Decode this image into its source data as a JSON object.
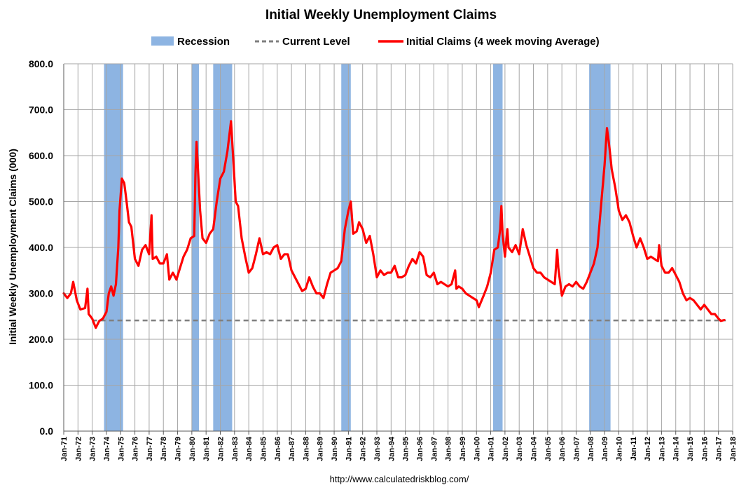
{
  "chart_data": {
    "type": "line",
    "title": "Initial Weekly Unemployment Claims",
    "ylabel": "Initial Weekly Unemployment Claims (000)",
    "xlabel": "",
    "ylim": [
      0,
      800
    ],
    "yticks": [
      "0.0",
      "100.0",
      "200.0",
      "300.0",
      "400.0",
      "500.0",
      "600.0",
      "700.0",
      "800.0"
    ],
    "xticks": [
      "Jan-71",
      "Jan-72",
      "Jan-73",
      "Jan-74",
      "Jan-75",
      "Jan-76",
      "Jan-77",
      "Jan-78",
      "Jan-79",
      "Jan-80",
      "Jan-81",
      "Jan-82",
      "Jan-83",
      "Jan-84",
      "Jan-85",
      "Jan-86",
      "Jan-87",
      "Jan-88",
      "Jan-89",
      "Jan-90",
      "Jan-91",
      "Jan-92",
      "Jan-93",
      "Jan-94",
      "Jan-95",
      "Jan-96",
      "Jan-97",
      "Jan-98",
      "Jan-99",
      "Jan-00",
      "Jan-01",
      "Jan-02",
      "Jan-03",
      "Jan-04",
      "Jan-05",
      "Jan-06",
      "Jan-07",
      "Jan-08",
      "Jan-09",
      "Jan-10",
      "Jan-11",
      "Jan-12",
      "Jan-13",
      "Jan-14",
      "Jan-15",
      "Jan-16",
      "Jan-17",
      "Jan-18"
    ],
    "xlim": [
      "Jan-71",
      "Jan-18"
    ],
    "grid": true,
    "legend_placement": "top-center",
    "legend": [
      {
        "label": "Recession",
        "style": "bar",
        "color": "#8db4e2"
      },
      {
        "label": "Current Level",
        "style": "dashed",
        "color": "#7f7f7f"
      },
      {
        "label": "Initial Claims (4 week moving Average)",
        "style": "line",
        "color": "#ff0000"
      }
    ],
    "recessions": [
      {
        "start": "Nov-73",
        "end": "Mar-75"
      },
      {
        "start": "Jan-80",
        "end": "Jul-80"
      },
      {
        "start": "Jul-81",
        "end": "Nov-82"
      },
      {
        "start": "Jul-90",
        "end": "Mar-91"
      },
      {
        "start": "Mar-01",
        "end": "Nov-01"
      },
      {
        "start": "Dec-07",
        "end": "Jun-09"
      }
    ],
    "current_level": 241,
    "series": [
      {
        "name": "Initial Claims (4 week moving Average)",
        "color": "#ff0000",
        "points": [
          [
            "Jan-71",
            300
          ],
          [
            "Apr-71",
            290
          ],
          [
            "Jul-71",
            300
          ],
          [
            "Sep-71",
            325
          ],
          [
            "Dec-71",
            285
          ],
          [
            "Mar-72",
            265
          ],
          [
            "Jul-72",
            268
          ],
          [
            "Sep-72",
            310
          ],
          [
            "Oct-72",
            255
          ],
          [
            "Jan-73",
            245
          ],
          [
            "Apr-73",
            225
          ],
          [
            "Jul-73",
            240
          ],
          [
            "Oct-73",
            245
          ],
          [
            "Jan-74",
            260
          ],
          [
            "Mar-74",
            300
          ],
          [
            "May-74",
            315
          ],
          [
            "Jul-74",
            295
          ],
          [
            "Sep-74",
            320
          ],
          [
            "Nov-74",
            400
          ],
          [
            "Dec-74",
            480
          ],
          [
            "Feb-75",
            550
          ],
          [
            "Apr-75",
            540
          ],
          [
            "Jun-75",
            500
          ],
          [
            "Aug-75",
            455
          ],
          [
            "Oct-75",
            445
          ],
          [
            "Jan-76",
            375
          ],
          [
            "Apr-76",
            360
          ],
          [
            "Jul-76",
            395
          ],
          [
            "Oct-76",
            405
          ],
          [
            "Jan-77",
            385
          ],
          [
            "Mar-77",
            470
          ],
          [
            "Apr-77",
            375
          ],
          [
            "Jul-77",
            380
          ],
          [
            "Oct-77",
            365
          ],
          [
            "Jan-78",
            365
          ],
          [
            "Apr-78",
            385
          ],
          [
            "Jun-78",
            330
          ],
          [
            "Sep-78",
            345
          ],
          [
            "Dec-78",
            330
          ],
          [
            "Mar-79",
            355
          ],
          [
            "Jun-79",
            380
          ],
          [
            "Sep-79",
            395
          ],
          [
            "Dec-79",
            420
          ],
          [
            "Mar-80",
            425
          ],
          [
            "Apr-80",
            560
          ],
          [
            "May-80",
            630
          ],
          [
            "Jun-80",
            580
          ],
          [
            "Aug-80",
            480
          ],
          [
            "Oct-80",
            420
          ],
          [
            "Jan-81",
            410
          ],
          [
            "Apr-81",
            430
          ],
          [
            "Jul-81",
            440
          ],
          [
            "Oct-81",
            500
          ],
          [
            "Jan-82",
            550
          ],
          [
            "Apr-82",
            565
          ],
          [
            "Jul-82",
            610
          ],
          [
            "Oct-82",
            675
          ],
          [
            "Dec-82",
            590
          ],
          [
            "Feb-83",
            500
          ],
          [
            "Apr-83",
            490
          ],
          [
            "Jul-83",
            420
          ],
          [
            "Oct-83",
            380
          ],
          [
            "Jan-84",
            345
          ],
          [
            "Apr-84",
            355
          ],
          [
            "Jul-84",
            385
          ],
          [
            "Oct-84",
            420
          ],
          [
            "Jan-85",
            385
          ],
          [
            "Apr-85",
            390
          ],
          [
            "Jul-85",
            385
          ],
          [
            "Oct-85",
            400
          ],
          [
            "Jan-86",
            405
          ],
          [
            "Apr-86",
            375
          ],
          [
            "Jul-86",
            385
          ],
          [
            "Oct-86",
            385
          ],
          [
            "Jan-87",
            350
          ],
          [
            "Apr-87",
            335
          ],
          [
            "Jul-87",
            320
          ],
          [
            "Oct-87",
            305
          ],
          [
            "Jan-88",
            310
          ],
          [
            "Apr-88",
            335
          ],
          [
            "Jul-88",
            315
          ],
          [
            "Oct-88",
            300
          ],
          [
            "Jan-89",
            300
          ],
          [
            "Apr-89",
            290
          ],
          [
            "Jul-89",
            320
          ],
          [
            "Oct-89",
            345
          ],
          [
            "Jan-90",
            350
          ],
          [
            "Apr-90",
            355
          ],
          [
            "Jul-90",
            370
          ],
          [
            "Oct-90",
            440
          ],
          [
            "Jan-91",
            480
          ],
          [
            "Mar-91",
            500
          ],
          [
            "May-91",
            430
          ],
          [
            "Aug-91",
            435
          ],
          [
            "Oct-91",
            455
          ],
          [
            "Jan-92",
            440
          ],
          [
            "Apr-92",
            410
          ],
          [
            "Jul-92",
            425
          ],
          [
            "Oct-92",
            385
          ],
          [
            "Jan-93",
            335
          ],
          [
            "Apr-93",
            350
          ],
          [
            "Jul-93",
            340
          ],
          [
            "Oct-93",
            345
          ],
          [
            "Jan-94",
            345
          ],
          [
            "Apr-94",
            360
          ],
          [
            "Jul-94",
            335
          ],
          [
            "Oct-94",
            335
          ],
          [
            "Jan-95",
            340
          ],
          [
            "Apr-95",
            360
          ],
          [
            "Jul-95",
            375
          ],
          [
            "Oct-95",
            365
          ],
          [
            "Jan-96",
            390
          ],
          [
            "Apr-96",
            380
          ],
          [
            "Jul-96",
            340
          ],
          [
            "Oct-96",
            335
          ],
          [
            "Jan-97",
            345
          ],
          [
            "Apr-97",
            320
          ],
          [
            "Jul-97",
            325
          ],
          [
            "Oct-97",
            320
          ],
          [
            "Jan-98",
            315
          ],
          [
            "Apr-98",
            320
          ],
          [
            "Jul-98",
            350
          ],
          [
            "Aug-98",
            310
          ],
          [
            "Oct-98",
            315
          ],
          [
            "Jan-99",
            310
          ],
          [
            "Apr-99",
            300
          ],
          [
            "Jul-99",
            295
          ],
          [
            "Oct-99",
            290
          ],
          [
            "Jan-00",
            285
          ],
          [
            "Mar-00",
            270
          ],
          [
            "Jul-00",
            295
          ],
          [
            "Oct-00",
            315
          ],
          [
            "Jan-01",
            345
          ],
          [
            "Apr-01",
            395
          ],
          [
            "Jul-01",
            400
          ],
          [
            "Sep-01",
            440
          ],
          [
            "Oct-01",
            490
          ],
          [
            "Nov-01",
            430
          ],
          [
            "Jan-02",
            380
          ],
          [
            "Mar-02",
            440
          ],
          [
            "Apr-02",
            400
          ],
          [
            "Jul-02",
            390
          ],
          [
            "Oct-02",
            405
          ],
          [
            "Jan-03",
            385
          ],
          [
            "Apr-03",
            440
          ],
          [
            "Jul-03",
            405
          ],
          [
            "Oct-03",
            380
          ],
          [
            "Jan-04",
            355
          ],
          [
            "Apr-04",
            345
          ],
          [
            "Jul-04",
            345
          ],
          [
            "Oct-04",
            335
          ],
          [
            "Jan-05",
            330
          ],
          [
            "Apr-05",
            325
          ],
          [
            "Jul-05",
            320
          ],
          [
            "Sep-05",
            395
          ],
          [
            "Oct-05",
            355
          ],
          [
            "Jan-06",
            295
          ],
          [
            "Apr-06",
            315
          ],
          [
            "Jul-06",
            320
          ],
          [
            "Oct-06",
            315
          ],
          [
            "Jan-07",
            325
          ],
          [
            "Apr-07",
            315
          ],
          [
            "Jul-07",
            310
          ],
          [
            "Oct-07",
            325
          ],
          [
            "Jan-08",
            345
          ],
          [
            "Apr-08",
            365
          ],
          [
            "Jul-08",
            400
          ],
          [
            "Oct-08",
            490
          ],
          [
            "Jan-09",
            580
          ],
          [
            "Mar-09",
            660
          ],
          [
            "May-09",
            620
          ],
          [
            "Jul-09",
            570
          ],
          [
            "Oct-09",
            530
          ],
          [
            "Jan-10",
            480
          ],
          [
            "Apr-10",
            460
          ],
          [
            "Jul-10",
            470
          ],
          [
            "Oct-10",
            455
          ],
          [
            "Jan-11",
            425
          ],
          [
            "Apr-11",
            400
          ],
          [
            "Jul-11",
            420
          ],
          [
            "Oct-11",
            400
          ],
          [
            "Jan-12",
            375
          ],
          [
            "Apr-12",
            380
          ],
          [
            "Jul-12",
            375
          ],
          [
            "Oct-12",
            370
          ],
          [
            "Nov-12",
            405
          ],
          [
            "Jan-13",
            360
          ],
          [
            "Apr-13",
            345
          ],
          [
            "Jul-13",
            345
          ],
          [
            "Oct-13",
            355
          ],
          [
            "Jan-14",
            340
          ],
          [
            "Apr-14",
            325
          ],
          [
            "Jul-14",
            300
          ],
          [
            "Oct-14",
            285
          ],
          [
            "Jan-15",
            290
          ],
          [
            "Apr-15",
            285
          ],
          [
            "Jul-15",
            275
          ],
          [
            "Oct-15",
            265
          ],
          [
            "Jan-16",
            275
          ],
          [
            "Apr-16",
            265
          ],
          [
            "Jul-16",
            255
          ],
          [
            "Oct-16",
            255
          ],
          [
            "Jan-17",
            245
          ],
          [
            "Mar-17",
            240
          ],
          [
            "Jun-17",
            242
          ]
        ]
      }
    ],
    "source_text": "http://www.calculatedriskblog.com/"
  }
}
